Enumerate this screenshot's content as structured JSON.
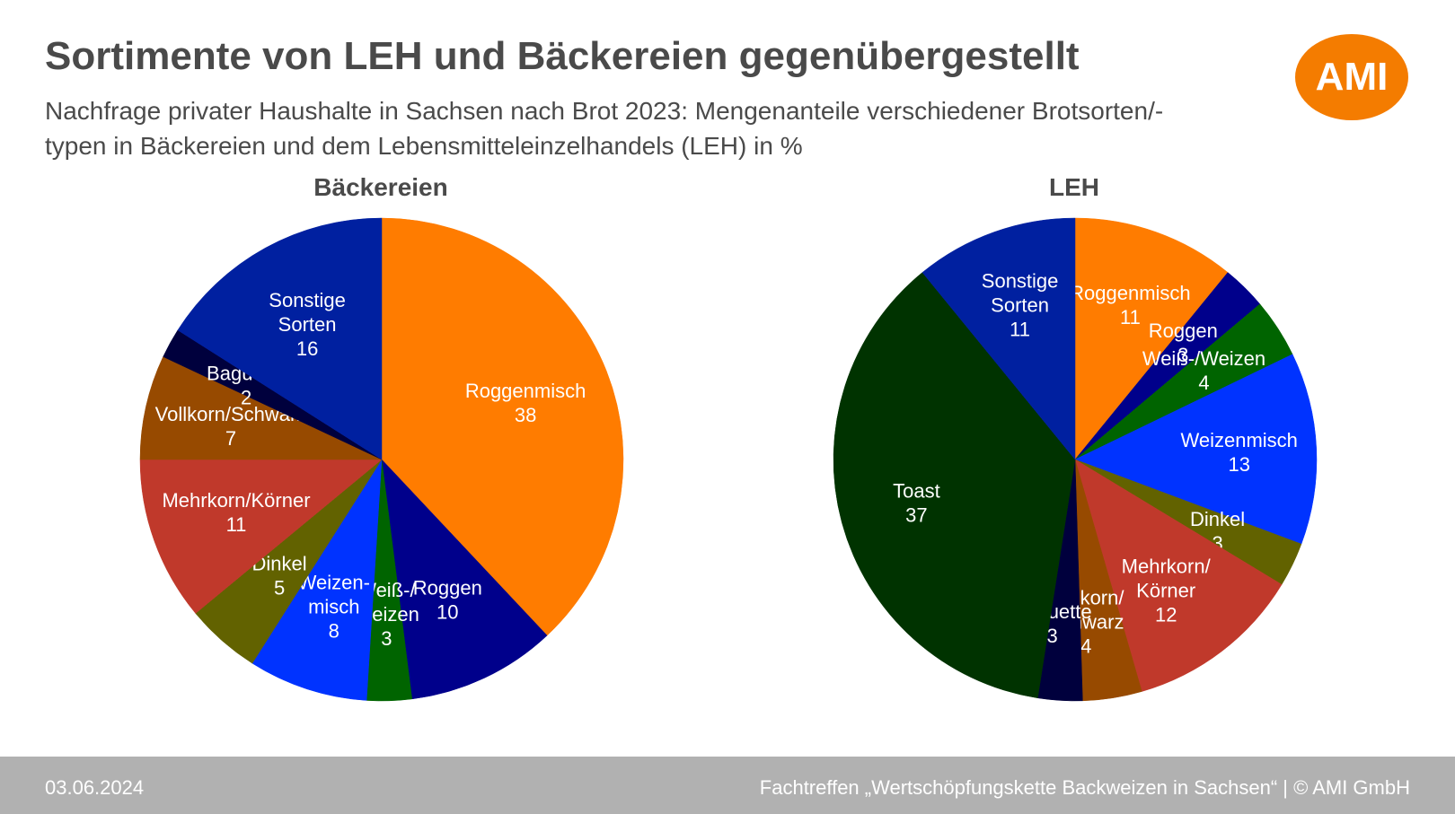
{
  "title": "Sortimente von LEH und Bäckereien gegenübergestellt",
  "subtitle": "Nachfrage privater Haushalte in Sachsen nach Brot 2023: Mengenanteile verschiedener Brotsorten/-typen in Bäckereien und dem Lebensmitteleinzelhandels (LEH) in %",
  "logo": {
    "text": "AMI",
    "color": "#f47c00"
  },
  "footer": {
    "date": "03.06.2024",
    "source": "Fachtreffen „Wertschöpfungskette Backweizen in Sachsen“ | © AMI GmbH",
    "background": "#b1b1b1"
  },
  "chart_data": [
    {
      "type": "pie",
      "title": "Bäckereien",
      "unit": "%",
      "start": "12 o'clock, clockwise",
      "slices": [
        {
          "name": "Roggenmisch",
          "label": [
            "Roggenmisch"
          ],
          "value": 38,
          "color": "#ff7c00"
        },
        {
          "name": "Roggen",
          "label": [
            "Roggen"
          ],
          "value": 10,
          "color": "#00008b"
        },
        {
          "name": "Weiß-/Weizen",
          "label": [
            "Weiß-/",
            "Weizen"
          ],
          "value": 3,
          "color": "#006400"
        },
        {
          "name": "Weizenmisch",
          "label": [
            "Weizen-",
            "misch"
          ],
          "value": 8,
          "color": "#0033ff"
        },
        {
          "name": "Dinkel",
          "label": [
            "Dinkel"
          ],
          "value": 5,
          "color": "#626200"
        },
        {
          "name": "Mehrkorn/Körner",
          "label": [
            "Mehrkorn/Körner"
          ],
          "value": 11,
          "color": "#c0392b"
        },
        {
          "name": "Vollkorn/Schwarz",
          "label": [
            "Vollkorn/Schwarz"
          ],
          "value": 7,
          "color": "#974a00"
        },
        {
          "name": "Baguette",
          "label": [
            "Baguette"
          ],
          "value": 2,
          "color": "#00003d"
        },
        {
          "name": "Sonstige Sorten",
          "label": [
            "Sonstige",
            "Sorten"
          ],
          "value": 16,
          "color": "#0020a0"
        }
      ]
    },
    {
      "type": "pie",
      "title": "LEH",
      "unit": "%",
      "start": "12 o'clock, clockwise",
      "slices": [
        {
          "name": "Roggenmisch",
          "label": [
            "Roggenmisch"
          ],
          "value": 11,
          "color": "#ff7c00"
        },
        {
          "name": "Roggen",
          "label": [
            "Roggen"
          ],
          "value": 3,
          "color": "#00008b"
        },
        {
          "name": "Weiß-/Weizen",
          "label": [
            "Weiß-/Weizen"
          ],
          "value": 4,
          "color": "#006400"
        },
        {
          "name": "Weizenmisch",
          "label": [
            "Weizenmisch"
          ],
          "value": 13,
          "color": "#0033ff"
        },
        {
          "name": "Dinkel",
          "label": [
            "Dinkel"
          ],
          "value": 3,
          "color": "#626200"
        },
        {
          "name": "Mehrkorn/Körner",
          "label": [
            "Mehrkorn/",
            "Körner"
          ],
          "value": 12,
          "color": "#c0392b"
        },
        {
          "name": "Vollkorn/Schwarz",
          "label": [
            "Vollkorn/",
            "Schwarz"
          ],
          "value": 4,
          "color": "#974a00"
        },
        {
          "name": "Baguette",
          "label": [
            "Baguette"
          ],
          "value": 3,
          "color": "#00003d"
        },
        {
          "name": "Toast",
          "label": [
            "Toast"
          ],
          "value": 37,
          "color": "#003300"
        },
        {
          "name": "Sonstige Sorten",
          "label": [
            "Sonstige",
            "Sorten"
          ],
          "value": 11,
          "color": "#0020a0"
        }
      ]
    }
  ]
}
